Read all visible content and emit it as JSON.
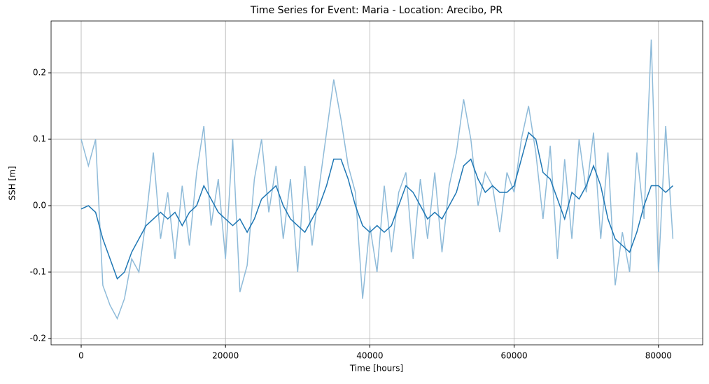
{
  "chart_data": {
    "type": "line",
    "title": "Time Series for Event: Maria - Location: Arecibo, PR",
    "x_label": "Time [hours]",
    "y_label": "SSH [m]",
    "x": [
      0,
      1000,
      2000,
      3000,
      4000,
      5000,
      6000,
      7000,
      8000,
      9000,
      10000,
      11000,
      12000,
      13000,
      14000,
      15000,
      16000,
      17000,
      18000,
      19000,
      20000,
      21000,
      22000,
      23000,
      24000,
      25000,
      26000,
      27000,
      28000,
      29000,
      30000,
      31000,
      32000,
      33000,
      34000,
      35000,
      36000,
      37000,
      38000,
      39000,
      40000,
      41000,
      42000,
      43000,
      44000,
      45000,
      46000,
      47000,
      48000,
      49000,
      50000,
      51000,
      52000,
      53000,
      54000,
      55000,
      56000,
      57000,
      58000,
      59000,
      60000,
      61000,
      62000,
      63000,
      64000,
      65000,
      66000,
      67000,
      68000,
      69000,
      70000,
      71000,
      72000,
      73000,
      74000,
      75000,
      76000,
      77000,
      78000,
      79000,
      80000,
      81000,
      82000
    ],
    "series": [
      {
        "color": "#8fbbd9",
        "values": [
          0.1,
          0.06,
          0.1,
          -0.12,
          -0.15,
          -0.17,
          -0.14,
          -0.08,
          -0.1,
          -0.02,
          0.08,
          -0.05,
          0.02,
          -0.08,
          0.03,
          -0.06,
          0.05,
          0.12,
          -0.03,
          0.04,
          -0.08,
          0.1,
          -0.13,
          -0.09,
          0.04,
          0.1,
          -0.01,
          0.06,
          -0.05,
          0.04,
          -0.1,
          0.06,
          -0.06,
          0.03,
          0.11,
          0.19,
          0.13,
          0.06,
          0.02,
          -0.14,
          -0.03,
          -0.1,
          0.03,
          -0.07,
          0.02,
          0.05,
          -0.08,
          0.04,
          -0.05,
          0.05,
          -0.07,
          0.03,
          0.08,
          0.16,
          0.1,
          0.0,
          0.05,
          0.03,
          -0.04,
          0.05,
          0.02,
          0.1,
          0.15,
          0.08,
          -0.02,
          0.09,
          -0.08,
          0.07,
          -0.05,
          0.1,
          0.02,
          0.11,
          -0.05,
          0.08,
          -0.12,
          -0.04,
          -0.1,
          0.08,
          -0.02,
          0.25,
          -0.1,
          0.12,
          -0.05
        ]
      },
      {
        "color": "#1f77b4",
        "values": [
          -0.005,
          0.0,
          -0.01,
          -0.05,
          -0.08,
          -0.11,
          -0.1,
          -0.07,
          -0.05,
          -0.03,
          -0.02,
          -0.01,
          -0.02,
          -0.01,
          -0.03,
          -0.01,
          0.0,
          0.03,
          0.01,
          -0.01,
          -0.02,
          -0.03,
          -0.02,
          -0.04,
          -0.02,
          0.01,
          0.02,
          0.03,
          0.0,
          -0.02,
          -0.03,
          -0.04,
          -0.02,
          0.0,
          0.03,
          0.07,
          0.07,
          0.04,
          0.0,
          -0.03,
          -0.04,
          -0.03,
          -0.04,
          -0.03,
          0.0,
          0.03,
          0.02,
          0.0,
          -0.02,
          -0.01,
          -0.02,
          0.0,
          0.02,
          0.06,
          0.07,
          0.04,
          0.02,
          0.03,
          0.02,
          0.02,
          0.03,
          0.07,
          0.11,
          0.1,
          0.05,
          0.04,
          0.01,
          -0.02,
          0.02,
          0.01,
          0.03,
          0.06,
          0.03,
          -0.02,
          -0.05,
          -0.06,
          -0.07,
          -0.04,
          0.0,
          0.03,
          0.03,
          0.02,
          0.03
        ]
      }
    ],
    "xlim": [
      -4170,
      86130
    ],
    "ylim": [
      -0.2095,
      0.278
    ],
    "xticks": [
      0,
      20000,
      40000,
      60000,
      80000
    ],
    "yticks": [
      -0.2,
      -0.1,
      {
        "value": 0,
        "label": "0.0"
      },
      0.1,
      0.2
    ],
    "grid": true
  }
}
